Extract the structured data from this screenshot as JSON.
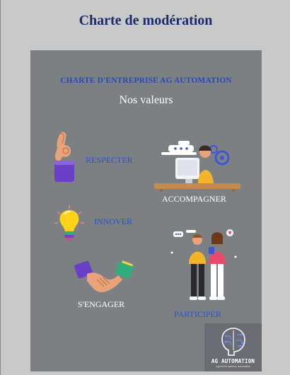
{
  "document": {
    "title": "Charte de modération"
  },
  "poster": {
    "heading": "CHARTE D'ENTREPRISE AG AUTOMATION",
    "subtitle": "Nos valeurs",
    "values": {
      "respecter": "RESPECTER",
      "accompagner": "ACCOMPAGNER",
      "innover": "INNOVER",
      "engager": "S'ENGAGER",
      "participer": "PARTICIPER"
    },
    "logo": {
      "name": "AG AUTOMATION",
      "tagline": "ingénierie système automatisé"
    }
  },
  "colors": {
    "title": "#1e2a6e",
    "heading_blue": "#2749b8",
    "label_blue": "#2c50c8",
    "card_background": "#7d8083",
    "page_background": "#c9c9c9"
  }
}
